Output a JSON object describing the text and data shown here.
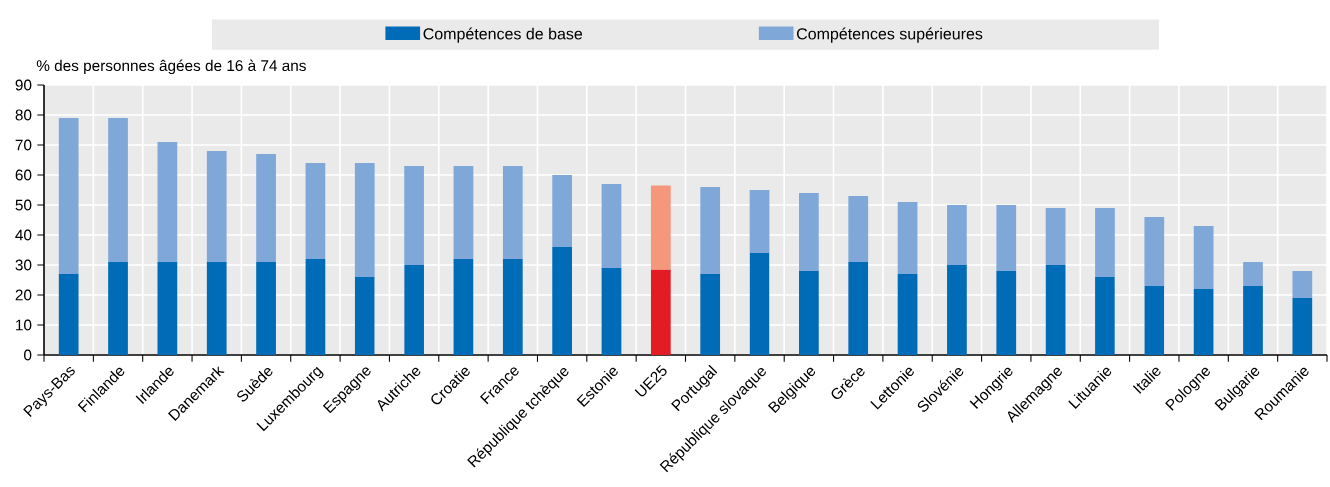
{
  "chart_data": {
    "type": "bar",
    "stacked": true,
    "ylabel": "% des personnes âgées de 16 à 74 ans",
    "categories": [
      "Pays-Bas",
      "Finlande",
      "Irlande",
      "Danemark",
      "Suède",
      "Luxembourg",
      "Espagne",
      "Autriche",
      "Croatie",
      "France",
      "République tchèque",
      "Estonie",
      "UE25",
      "Portugal",
      "République slovaque",
      "Belgique",
      "Grèce",
      "Lettonie",
      "Slovénie",
      "Hongrie",
      "Allemagne",
      "Lituanie",
      "Italie",
      "Pologne",
      "Bulgarie",
      "Roumanie"
    ],
    "series": [
      {
        "name": "Compétences de base",
        "color": "#006bb6",
        "colors": [
          "#006bb6",
          "#006bb6",
          "#006bb6",
          "#006bb6",
          "#006bb6",
          "#006bb6",
          "#006bb6",
          "#006bb6",
          "#006bb6",
          "#006bb6",
          "#006bb6",
          "#006bb6",
          "#e31b23",
          "#006bb6",
          "#006bb6",
          "#006bb6",
          "#006bb6",
          "#006bb6",
          "#006bb6",
          "#006bb6",
          "#006bb6",
          "#006bb6",
          "#006bb6",
          "#006bb6",
          "#006bb6",
          "#006bb6"
        ],
        "values": [
          27,
          31,
          31,
          31,
          31,
          32,
          26,
          30,
          32,
          32,
          36,
          29,
          28.5,
          27,
          34,
          28,
          31,
          27,
          30,
          28,
          30,
          26,
          23,
          22,
          23,
          19
        ]
      },
      {
        "name": "Compétences supérieures",
        "color": "#7fa8d9",
        "colors": [
          "#7fa8d9",
          "#7fa8d9",
          "#7fa8d9",
          "#7fa8d9",
          "#7fa8d9",
          "#7fa8d9",
          "#7fa8d9",
          "#7fa8d9",
          "#7fa8d9",
          "#7fa8d9",
          "#7fa8d9",
          "#7fa8d9",
          "#f4977a",
          "#7fa8d9",
          "#7fa8d9",
          "#7fa8d9",
          "#7fa8d9",
          "#7fa8d9",
          "#7fa8d9",
          "#7fa8d9",
          "#7fa8d9",
          "#7fa8d9",
          "#7fa8d9",
          "#7fa8d9",
          "#7fa8d9",
          "#7fa8d9"
        ],
        "values": [
          52,
          48,
          40,
          37,
          36,
          32,
          38,
          33,
          31,
          31,
          24,
          28,
          28,
          29,
          21,
          26,
          22,
          24,
          20,
          22,
          19,
          23,
          23,
          21,
          8,
          9
        ]
      }
    ],
    "ylim": [
      0,
      90
    ],
    "yticks": [
      0,
      10,
      20,
      30,
      40,
      50,
      60,
      70,
      80,
      90
    ],
    "grid": true,
    "legend": "top"
  }
}
